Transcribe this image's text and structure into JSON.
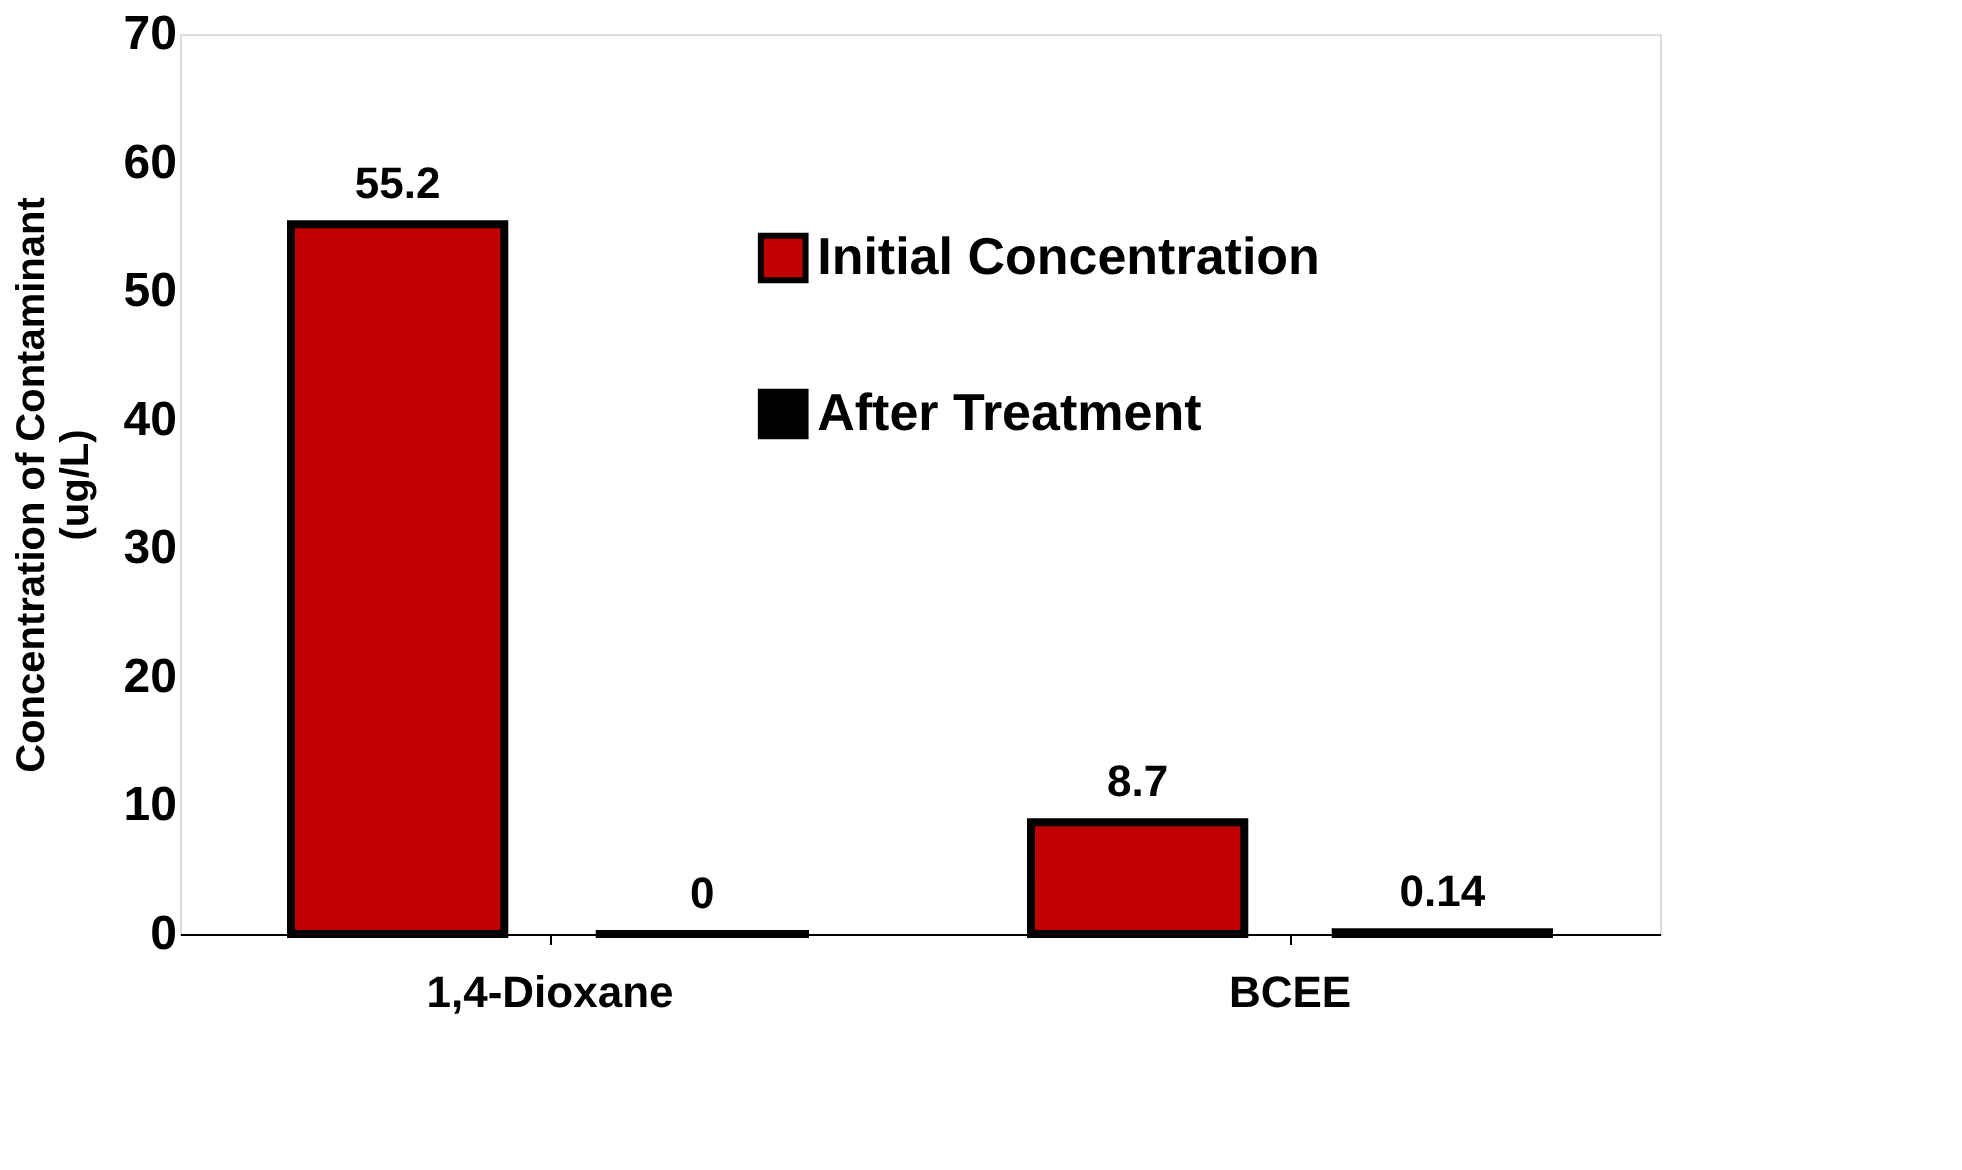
{
  "chart_data": {
    "type": "bar",
    "ylabel": "Concentration of Contaminant\n(ug/L)",
    "categories": [
      "1,4-Dioxane",
      "BCEE"
    ],
    "series": [
      {
        "name": "Initial Concentration",
        "color": "#c00000",
        "values": [
          55.2,
          8.7
        ]
      },
      {
        "name": "After Treatment",
        "color": "#000000",
        "values": [
          0,
          0.14
        ]
      }
    ],
    "ylim": [
      0,
      70
    ],
    "yticks": [
      0,
      10,
      20,
      30,
      40,
      50,
      60,
      70
    ],
    "data_labels": true,
    "grid": false,
    "legend": "right"
  }
}
